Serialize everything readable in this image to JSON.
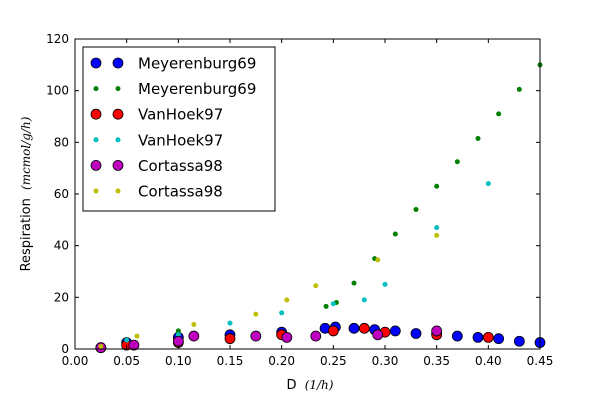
{
  "chart_data": {
    "type": "scatter",
    "title": "",
    "xlabel": "D",
    "xlabel_unit": "(1/h)",
    "ylabel": "Respiration",
    "ylabel_unit": "(mcmol/g/h)",
    "xlim": [
      0.0,
      0.45
    ],
    "ylim": [
      0,
      120
    ],
    "xticks": [
      "0.00",
      "0.05",
      "0.10",
      "0.15",
      "0.20",
      "0.25",
      "0.30",
      "0.35",
      "0.40",
      "0.45"
    ],
    "yticks": [
      "0",
      "20",
      "40",
      "60",
      "80",
      "100",
      "120"
    ],
    "grid": false,
    "legend_position": "top-left",
    "series": [
      {
        "name": "Meyerenburg69",
        "color": "#0000ff",
        "marker": "large",
        "points": [
          [
            0.025,
            0.5
          ],
          [
            0.05,
            2.5
          ],
          [
            0.1,
            4.5
          ],
          [
            0.15,
            5.5
          ],
          [
            0.2,
            6.5
          ],
          [
            0.242,
            8
          ],
          [
            0.252,
            8.5
          ],
          [
            0.27,
            8
          ],
          [
            0.29,
            7.5
          ],
          [
            0.31,
            7
          ],
          [
            0.33,
            6
          ],
          [
            0.35,
            6
          ],
          [
            0.37,
            5
          ],
          [
            0.39,
            4.5
          ],
          [
            0.41,
            4
          ],
          [
            0.43,
            3
          ],
          [
            0.45,
            2.5
          ]
        ]
      },
      {
        "name": "Meyerenburg69",
        "color": "#008000",
        "marker": "small",
        "points": [
          [
            0.025,
            0.5
          ],
          [
            0.05,
            2
          ],
          [
            0.1,
            7
          ],
          [
            0.15,
            5
          ],
          [
            0.2,
            6
          ],
          [
            0.243,
            16.5
          ],
          [
            0.253,
            18
          ],
          [
            0.27,
            25.5
          ],
          [
            0.29,
            35
          ],
          [
            0.31,
            44.5
          ],
          [
            0.33,
            54
          ],
          [
            0.35,
            63
          ],
          [
            0.37,
            72.5
          ],
          [
            0.39,
            81.5
          ],
          [
            0.41,
            91
          ],
          [
            0.43,
            100.5
          ],
          [
            0.45,
            110
          ]
        ]
      },
      {
        "name": "VanHoek97",
        "color": "#ff0000",
        "marker": "large",
        "points": [
          [
            0.05,
            1.5
          ],
          [
            0.1,
            2.5
          ],
          [
            0.15,
            4
          ],
          [
            0.2,
            5.5
          ],
          [
            0.25,
            7
          ],
          [
            0.28,
            8
          ],
          [
            0.3,
            6.5
          ],
          [
            0.35,
            5.5
          ],
          [
            0.4,
            4.5
          ]
        ]
      },
      {
        "name": "VanHoek97",
        "color": "#00bfbf",
        "marker": "small",
        "points": [
          [
            0.05,
            3.5
          ],
          [
            0.1,
            5.5
          ],
          [
            0.15,
            10
          ],
          [
            0.2,
            14
          ],
          [
            0.25,
            17.5
          ],
          [
            0.28,
            19
          ],
          [
            0.3,
            25
          ],
          [
            0.35,
            47
          ],
          [
            0.4,
            64
          ]
        ]
      },
      {
        "name": "Cortassa98",
        "color": "#bf00bf",
        "marker": "large",
        "points": [
          [
            0.025,
            0.5
          ],
          [
            0.057,
            1.5
          ],
          [
            0.1,
            3
          ],
          [
            0.115,
            5
          ],
          [
            0.175,
            5
          ],
          [
            0.205,
            4.5
          ],
          [
            0.233,
            5
          ],
          [
            0.293,
            5.5
          ],
          [
            0.35,
            7
          ]
        ]
      },
      {
        "name": "Cortassa98",
        "color": "#bfbf00",
        "marker": "small",
        "points": [
          [
            0.025,
            1
          ],
          [
            0.06,
            5
          ],
          [
            0.115,
            9.5
          ],
          [
            0.175,
            13.5
          ],
          [
            0.205,
            19
          ],
          [
            0.233,
            24.5
          ],
          [
            0.293,
            34.5
          ],
          [
            0.35,
            44
          ]
        ]
      }
    ]
  }
}
